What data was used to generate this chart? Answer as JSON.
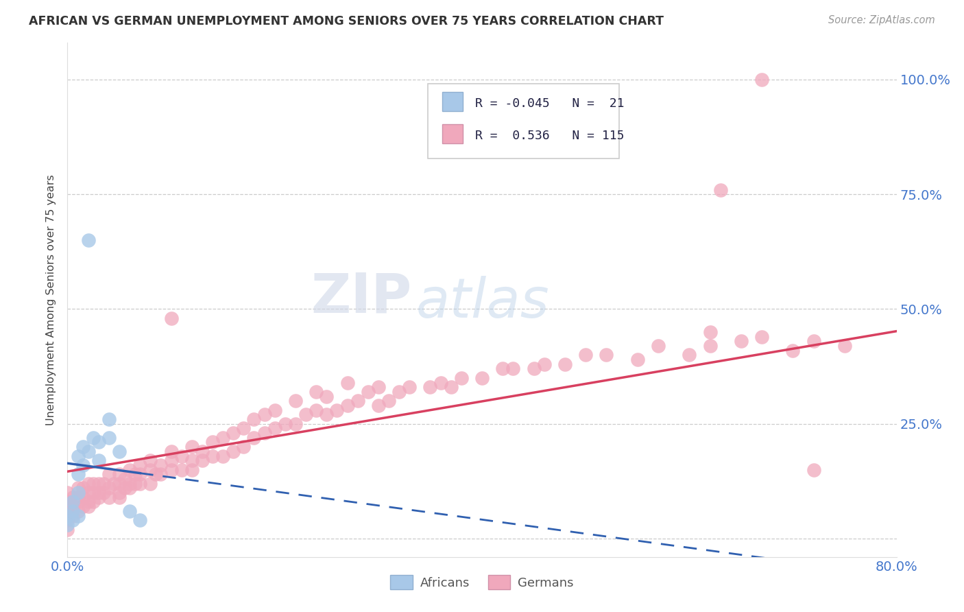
{
  "title": "AFRICAN VS GERMAN UNEMPLOYMENT AMONG SENIORS OVER 75 YEARS CORRELATION CHART",
  "source": "Source: ZipAtlas.com",
  "ylabel": "Unemployment Among Seniors over 75 years",
  "xlim": [
    0.0,
    0.8
  ],
  "ylim": [
    -0.04,
    1.08
  ],
  "x_ticks": [
    0.0,
    0.1,
    0.2,
    0.3,
    0.4,
    0.5,
    0.6,
    0.7,
    0.8
  ],
  "x_tick_labels": [
    "0.0%",
    "",
    "",
    "",
    "",
    "",
    "",
    "",
    "80.0%"
  ],
  "y_ticks": [
    0.0,
    0.25,
    0.5,
    0.75,
    1.0
  ],
  "y_tick_labels": [
    "",
    "25.0%",
    "50.0%",
    "75.0%",
    "100.0%"
  ],
  "africans_R": -0.045,
  "africans_N": 21,
  "germans_R": 0.536,
  "germans_N": 115,
  "africans_color": "#a8c8e8",
  "africans_line_color": "#3060b0",
  "germans_color": "#f0a8bc",
  "germans_line_color": "#d84060",
  "watermark_zip": "ZIP",
  "watermark_atlas": "atlas",
  "africans_x": [
    0.0,
    0.0,
    0.005,
    0.005,
    0.005,
    0.01,
    0.01,
    0.01,
    0.01,
    0.015,
    0.015,
    0.02,
    0.02,
    0.025,
    0.03,
    0.03,
    0.04,
    0.04,
    0.05,
    0.06,
    0.07
  ],
  "africans_y": [
    0.03,
    0.05,
    0.04,
    0.06,
    0.08,
    0.05,
    0.1,
    0.14,
    0.18,
    0.16,
    0.2,
    0.65,
    0.19,
    0.22,
    0.17,
    0.21,
    0.22,
    0.26,
    0.19,
    0.06,
    0.04
  ],
  "germans_x": [
    0.0,
    0.0,
    0.0,
    0.0,
    0.0,
    0.005,
    0.005,
    0.005,
    0.01,
    0.01,
    0.01,
    0.01,
    0.015,
    0.015,
    0.015,
    0.02,
    0.02,
    0.02,
    0.02,
    0.025,
    0.025,
    0.025,
    0.03,
    0.03,
    0.03,
    0.035,
    0.035,
    0.04,
    0.04,
    0.04,
    0.045,
    0.05,
    0.05,
    0.05,
    0.05,
    0.055,
    0.055,
    0.06,
    0.06,
    0.06,
    0.065,
    0.065,
    0.07,
    0.07,
    0.07,
    0.08,
    0.08,
    0.08,
    0.085,
    0.09,
    0.09,
    0.1,
    0.1,
    0.1,
    0.11,
    0.11,
    0.12,
    0.12,
    0.12,
    0.13,
    0.13,
    0.14,
    0.14,
    0.15,
    0.15,
    0.16,
    0.16,
    0.17,
    0.17,
    0.18,
    0.18,
    0.19,
    0.19,
    0.2,
    0.2,
    0.21,
    0.22,
    0.22,
    0.23,
    0.24,
    0.24,
    0.25,
    0.25,
    0.26,
    0.27,
    0.27,
    0.28,
    0.29,
    0.3,
    0.3,
    0.31,
    0.32,
    0.33,
    0.35,
    0.36,
    0.37,
    0.38,
    0.4,
    0.42,
    0.43,
    0.45,
    0.46,
    0.48,
    0.5,
    0.52,
    0.55,
    0.57,
    0.6,
    0.62,
    0.65,
    0.67,
    0.7,
    0.72,
    0.75,
    0.62,
    0.63,
    0.0,
    0.1,
    0.67,
    0.72
  ],
  "germans_y": [
    0.04,
    0.06,
    0.07,
    0.08,
    0.1,
    0.05,
    0.07,
    0.09,
    0.06,
    0.08,
    0.09,
    0.11,
    0.07,
    0.09,
    0.11,
    0.07,
    0.08,
    0.1,
    0.12,
    0.08,
    0.1,
    0.12,
    0.09,
    0.1,
    0.12,
    0.1,
    0.12,
    0.09,
    0.11,
    0.14,
    0.12,
    0.09,
    0.1,
    0.12,
    0.14,
    0.11,
    0.13,
    0.11,
    0.12,
    0.15,
    0.12,
    0.14,
    0.12,
    0.14,
    0.16,
    0.12,
    0.15,
    0.17,
    0.14,
    0.14,
    0.16,
    0.15,
    0.17,
    0.19,
    0.15,
    0.18,
    0.15,
    0.17,
    0.2,
    0.17,
    0.19,
    0.18,
    0.21,
    0.18,
    0.22,
    0.19,
    0.23,
    0.2,
    0.24,
    0.22,
    0.26,
    0.23,
    0.27,
    0.24,
    0.28,
    0.25,
    0.25,
    0.3,
    0.27,
    0.28,
    0.32,
    0.27,
    0.31,
    0.28,
    0.29,
    0.34,
    0.3,
    0.32,
    0.29,
    0.33,
    0.3,
    0.32,
    0.33,
    0.33,
    0.34,
    0.33,
    0.35,
    0.35,
    0.37,
    0.37,
    0.37,
    0.38,
    0.38,
    0.4,
    0.4,
    0.39,
    0.42,
    0.4,
    0.42,
    0.43,
    0.44,
    0.41,
    0.43,
    0.42,
    0.45,
    0.76,
    0.02,
    0.48,
    1.0,
    0.15
  ]
}
